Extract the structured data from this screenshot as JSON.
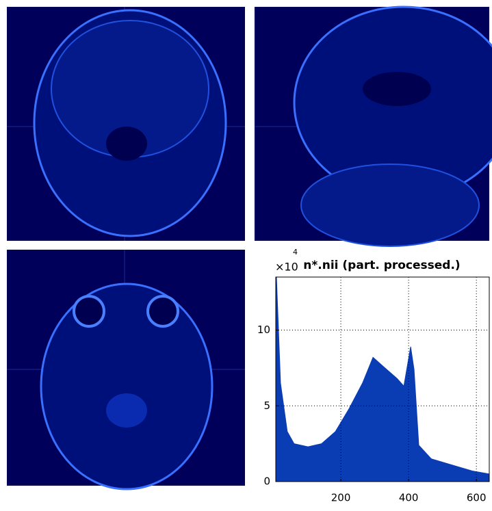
{
  "chart_data": {
    "type": "area",
    "title": "n*.nii (part. processed.)",
    "y_multiplier": "×10",
    "y_multiplier_exponent": "4",
    "x": [
      10,
      22,
      42,
      62,
      103,
      143,
      184,
      224,
      264,
      295,
      325,
      366,
      386,
      406,
      416,
      430,
      467,
      527,
      588,
      638
    ],
    "values": [
      13.5,
      6.5,
      3.3,
      2.5,
      2.3,
      2.5,
      3.3,
      4.8,
      6.5,
      8.2,
      7.6,
      6.8,
      6.3,
      8.9,
      7.4,
      2.4,
      1.5,
      1.1,
      0.7,
      0.5
    ],
    "color": "#0a3cb4",
    "xlim": [
      8,
      638
    ],
    "xticks": [
      200,
      400,
      600
    ],
    "ylim": [
      0,
      13.5
    ],
    "yticks": [
      0,
      5,
      10
    ],
    "grid": true
  }
}
